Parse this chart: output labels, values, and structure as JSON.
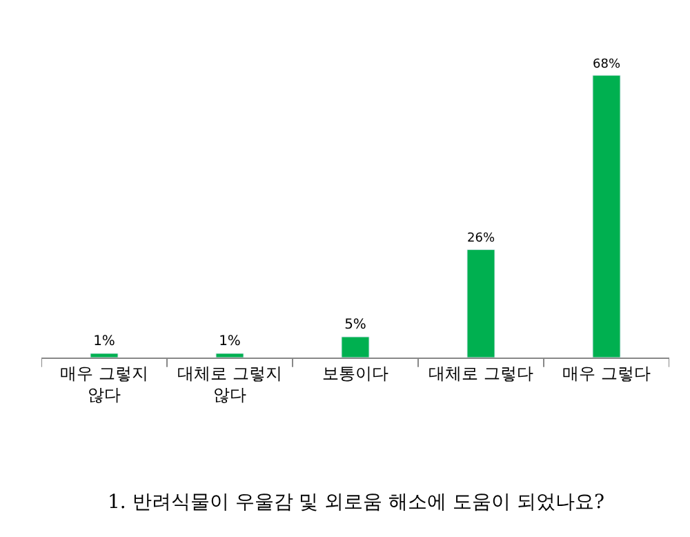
{
  "chart_data": {
    "type": "bar",
    "categories": [
      "매우 그렇지\n않다",
      "대체로 그렇지\n않다",
      "보통이다",
      "대체로 그렇다",
      "매우 그렇다"
    ],
    "values": [
      1,
      1,
      5,
      26,
      68
    ],
    "value_labels": [
      "1%",
      "1%",
      "5%",
      "26%",
      "68%"
    ],
    "color": "#00b050",
    "legend": false,
    "annotations": [
      "1. 반려식물이 우울감 및 외로움 해소에 도움이 되었나요?"
    ]
  }
}
